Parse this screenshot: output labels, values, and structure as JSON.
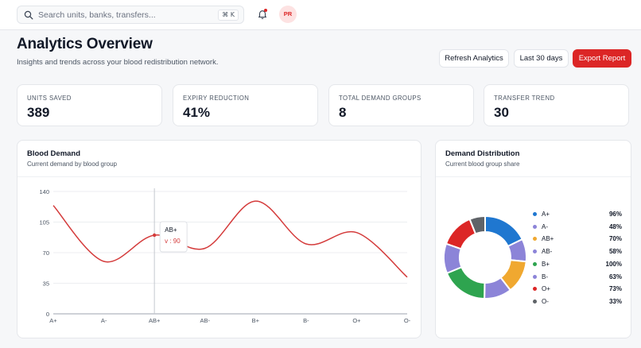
{
  "search": {
    "placeholder": "Search units, banks, transfers...",
    "shortcut": "⌘ K"
  },
  "user": {
    "initials": "PR"
  },
  "header": {
    "title": "Analytics Overview",
    "subtitle": "Insights and trends across your blood redistribution network.",
    "refresh_label": "Refresh Analytics",
    "range_label": "Last 30 days",
    "export_label": "Export Report"
  },
  "stats": [
    {
      "label": "UNITS SAVED",
      "value": "389"
    },
    {
      "label": "EXPIRY REDUCTION",
      "value": "41%"
    },
    {
      "label": "TOTAL DEMAND GROUPS",
      "value": "8"
    },
    {
      "label": "TRANSFER TREND",
      "value": "30"
    }
  ],
  "demand_card": {
    "title": "Blood Demand",
    "subtitle": "Current demand by blood group"
  },
  "distribution_card": {
    "title": "Demand Distribution",
    "subtitle": "Current blood group share"
  },
  "tooltip": {
    "label": "AB+",
    "value": "v : 90"
  },
  "colors": {
    "accent": "#dc2626",
    "line": "#d43b3b"
  },
  "chart_data": [
    {
      "type": "line",
      "categories": [
        "A+",
        "A-",
        "AB+",
        "AB-",
        "B+",
        "B-",
        "O+",
        "O-"
      ],
      "series": [
        {
          "values": [
            124,
            60,
            90,
            75,
            129,
            80,
            93,
            42
          ]
        }
      ],
      "yticks": [
        0,
        35,
        70,
        105,
        140
      ],
      "ylim": [
        0,
        140
      ],
      "grid": true,
      "highlight_index": 2
    },
    {
      "type": "pie",
      "labels": [
        "A+",
        "A-",
        "AB+",
        "AB-",
        "B+",
        "B-",
        "O+",
        "O-"
      ],
      "values": [
        96,
        48,
        70,
        58,
        100,
        63,
        73,
        33
      ],
      "display": [
        "96%",
        "48%",
        "70%",
        "58%",
        "100%",
        "63%",
        "73%",
        "33%"
      ],
      "colors": [
        "#1f77d0",
        "#8c84d8",
        "#f0a830",
        "#8c84d8",
        "#2ea44f",
        "#8c84d8",
        "#dc2626",
        "#5f6368"
      ],
      "legend": "right"
    }
  ]
}
